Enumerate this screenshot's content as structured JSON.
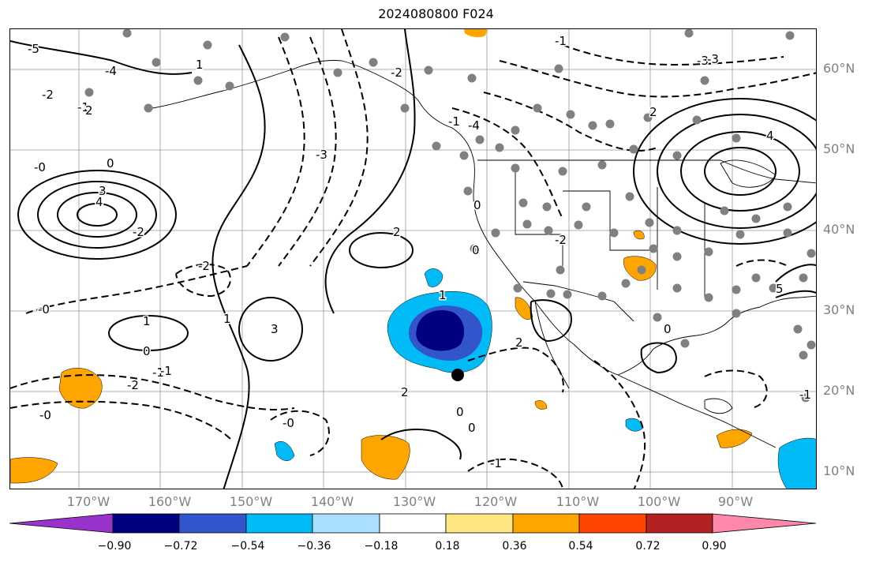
{
  "title": "2024080800 F024",
  "lat_labels": [
    "60°N",
    "50°N",
    "40°N",
    "30°N",
    "20°N",
    "10°N"
  ],
  "lon_labels": [
    "170°W",
    "160°W",
    "150°W",
    "140°W",
    "130°W",
    "120°W",
    "110°W",
    "100°W",
    "90°W"
  ],
  "colorbar": {
    "colors": [
      "#9933cc",
      "#000080",
      "#3355cc",
      "#00bbf5",
      "#aadfff",
      "#ffffff",
      "#ffe680",
      "#ffa500",
      "#ff4500",
      "#b22222",
      "#ff88aa"
    ],
    "tick_labels": [
      "−0.90",
      "−0.72",
      "−0.54",
      "−0.36",
      "−0.18",
      "0.18",
      "0.36",
      "0.54",
      "0.72",
      "0.90"
    ]
  },
  "contour_labels": [
    {
      "text": "-5"
    },
    {
      "text": "-4"
    },
    {
      "text": "-2"
    },
    {
      "text": "-1"
    },
    {
      "text": "-0"
    },
    {
      "text": "3"
    },
    {
      "text": "4"
    },
    {
      "text": "2"
    },
    {
      "text": "1"
    },
    {
      "text": "-3"
    },
    {
      "text": "4"
    },
    {
      "text": "2"
    },
    {
      "text": "0"
    },
    {
      "text": "-2"
    },
    {
      "text": "-0"
    },
    {
      "text": "1"
    },
    {
      "text": "0"
    },
    {
      "text": "-1"
    },
    {
      "text": "-2"
    },
    {
      "text": "-0"
    },
    {
      "text": "0"
    },
    {
      "text": "-0"
    },
    {
      "text": "2"
    },
    {
      "text": "-2"
    },
    {
      "text": "1"
    },
    {
      "text": "0"
    },
    {
      "text": "-1"
    },
    {
      "text": "2"
    },
    {
      "text": "0"
    },
    {
      "text": "-2"
    },
    {
      "text": "-3"
    },
    {
      "text": "-2"
    },
    {
      "text": "5"
    },
    {
      "text": "-1"
    },
    {
      "text": "3"
    },
    {
      "text": "-1"
    },
    {
      "text": "1"
    },
    {
      "text": "-1"
    },
    {
      "text": "0"
    },
    {
      "text": "2"
    },
    {
      "text": "-4"
    },
    {
      "text": "-3"
    },
    {
      "text": "0"
    },
    {
      "text": "-1"
    }
  ]
}
